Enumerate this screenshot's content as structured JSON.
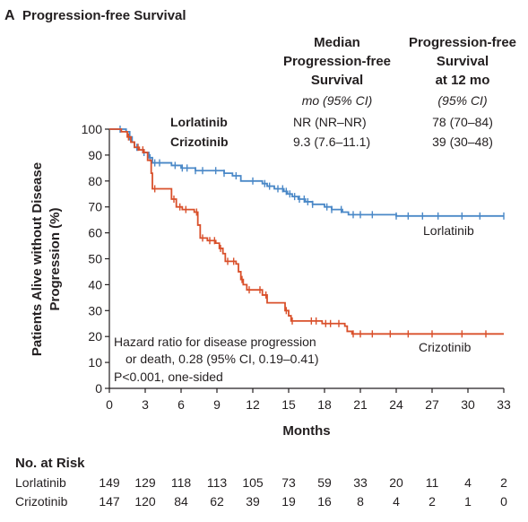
{
  "panel": {
    "letter": "A",
    "title": "Progression-free Survival"
  },
  "table": {
    "col1_header": [
      "Median",
      "Progression-free",
      "Survival"
    ],
    "col2_header": [
      "Progression-free",
      "Survival",
      "at 12 mo"
    ],
    "col1_sub": "mo (95% CI)",
    "col2_sub": "(95% CI)",
    "rows": [
      {
        "label": "Lorlatinib",
        "median": "NR (NR–NR)",
        "pfs12": "78 (70–84)"
      },
      {
        "label": "Crizotinib",
        "median": "9.3 (7.6–11.1)",
        "pfs12": "39 (30–48)"
      }
    ]
  },
  "annotation": [
    "Hazard ratio for disease progression",
    "or death, 0.28 (95% CI, 0.19–0.41)",
    "P<0.001, one-sided"
  ],
  "risk": {
    "title": "No. at Risk",
    "rows": [
      {
        "label": "Lorlatinib",
        "values": [
          "149",
          "129",
          "118",
          "113",
          "105",
          "73",
          "59",
          "33",
          "20",
          "11",
          "4",
          "2"
        ]
      },
      {
        "label": "Crizotinib",
        "values": [
          "147",
          "120",
          "84",
          "62",
          "39",
          "19",
          "16",
          "8",
          "4",
          "2",
          "1",
          "0"
        ]
      }
    ]
  },
  "chart_data": {
    "type": "line",
    "step": true,
    "xlabel": "Months",
    "ylabel": [
      "Patients Alive without Disease",
      "Progression (%)"
    ],
    "xlim": [
      0,
      33
    ],
    "ylim": [
      0,
      100
    ],
    "xticks": [
      0,
      3,
      6,
      9,
      12,
      15,
      18,
      21,
      24,
      27,
      30,
      33
    ],
    "yticks": [
      0,
      10,
      20,
      30,
      40,
      50,
      60,
      70,
      80,
      90,
      100
    ],
    "grid": false,
    "series": [
      {
        "name": "Lorlatinib",
        "color": "#4a88c7",
        "points": [
          [
            0,
            100
          ],
          [
            1.4,
            99
          ],
          [
            1.7,
            97
          ],
          [
            1.9,
            95
          ],
          [
            2.1,
            93
          ],
          [
            2.4,
            92
          ],
          [
            2.8,
            91
          ],
          [
            3.3,
            89
          ],
          [
            3.6,
            87
          ],
          [
            5.2,
            86
          ],
          [
            6.0,
            85
          ],
          [
            7.2,
            84
          ],
          [
            9.6,
            83
          ],
          [
            10.3,
            82
          ],
          [
            11.0,
            80
          ],
          [
            12.8,
            79
          ],
          [
            13.2,
            78
          ],
          [
            13.8,
            77
          ],
          [
            14.6,
            76
          ],
          [
            14.9,
            75
          ],
          [
            15.3,
            74
          ],
          [
            15.8,
            73
          ],
          [
            16.4,
            72
          ],
          [
            17.0,
            71
          ],
          [
            18.0,
            70
          ],
          [
            18.6,
            69
          ],
          [
            19.5,
            68
          ],
          [
            20.0,
            67
          ],
          [
            21.0,
            67
          ],
          [
            24.0,
            66.5
          ],
          [
            33.0,
            66.5
          ]
        ],
        "censor_x": [
          0.9,
          1.7,
          2.3,
          2.9,
          3.4,
          3.8,
          4.2,
          5.5,
          6.1,
          6.5,
          7.2,
          7.8,
          8.9,
          9.6,
          10.6,
          12.0,
          13.0,
          13.4,
          14.1,
          14.5,
          14.8,
          15.1,
          15.5,
          15.9,
          16.3,
          16.6,
          17.0,
          18.2,
          18.6,
          19.4,
          20.4,
          21.0,
          22.0,
          24.0,
          25.0,
          26.2,
          27.5,
          29.5,
          31.0,
          33.0
        ]
      },
      {
        "name": "Crizotinib",
        "color": "#d9502b",
        "points": [
          [
            0,
            100
          ],
          [
            1.0,
            99
          ],
          [
            1.5,
            97
          ],
          [
            1.8,
            95
          ],
          [
            2.1,
            93
          ],
          [
            2.5,
            92
          ],
          [
            2.9,
            91
          ],
          [
            3.2,
            88
          ],
          [
            3.5,
            83
          ],
          [
            3.6,
            77
          ],
          [
            4.8,
            77
          ],
          [
            5.2,
            73
          ],
          [
            5.6,
            70
          ],
          [
            6.1,
            69
          ],
          [
            7.1,
            68
          ],
          [
            7.4,
            63
          ],
          [
            7.6,
            58
          ],
          [
            8.2,
            57
          ],
          [
            8.9,
            56
          ],
          [
            9.2,
            54
          ],
          [
            9.5,
            52
          ],
          [
            9.7,
            49
          ],
          [
            10.6,
            48
          ],
          [
            10.8,
            45
          ],
          [
            11.0,
            42
          ],
          [
            11.2,
            40
          ],
          [
            11.5,
            38
          ],
          [
            12.8,
            36
          ],
          [
            13.2,
            33
          ],
          [
            14.6,
            33
          ],
          [
            14.7,
            30
          ],
          [
            15.0,
            28
          ],
          [
            15.2,
            26
          ],
          [
            16.3,
            26
          ],
          [
            17.8,
            25
          ],
          [
            19.7,
            24
          ],
          [
            19.9,
            22
          ],
          [
            20.3,
            21
          ],
          [
            33.0,
            21
          ]
        ],
        "censor_x": [
          1.6,
          2.4,
          2.8,
          3.8,
          5.4,
          5.9,
          6.4,
          7.3,
          7.8,
          8.4,
          8.8,
          9.3,
          9.9,
          10.4,
          11.1,
          11.7,
          12.6,
          13.1,
          14.8,
          15.3,
          16.9,
          17.3,
          18.1,
          18.5,
          19.2,
          20.4,
          21.0,
          22.0,
          23.5,
          25.0,
          27.0,
          29.5,
          31.5
        ]
      }
    ]
  }
}
